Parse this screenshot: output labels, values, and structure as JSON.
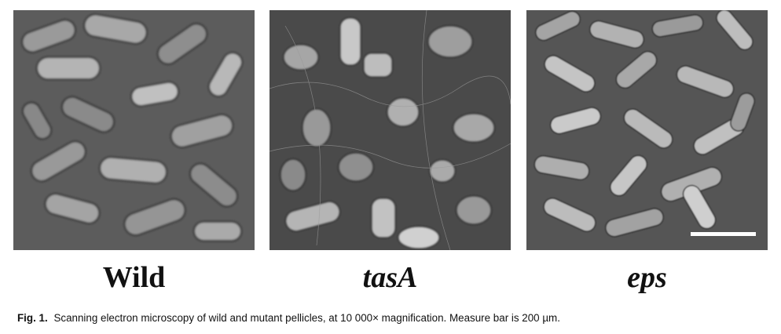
{
  "figure": {
    "panels": [
      {
        "label": "Wild",
        "style": "bold",
        "image": "sem-micrograph-wild"
      },
      {
        "label": "tasA",
        "style": "bold-italic",
        "image": "sem-micrograph-tasA"
      },
      {
        "label": "eps",
        "style": "bold-italic",
        "image": "sem-micrograph-eps"
      }
    ],
    "caption": {
      "number": "Fig. 1.",
      "text": "Scanning electron microscopy of wild and mutant pellicles, at 10 000× magnification. Measure bar is 200 µm."
    }
  }
}
